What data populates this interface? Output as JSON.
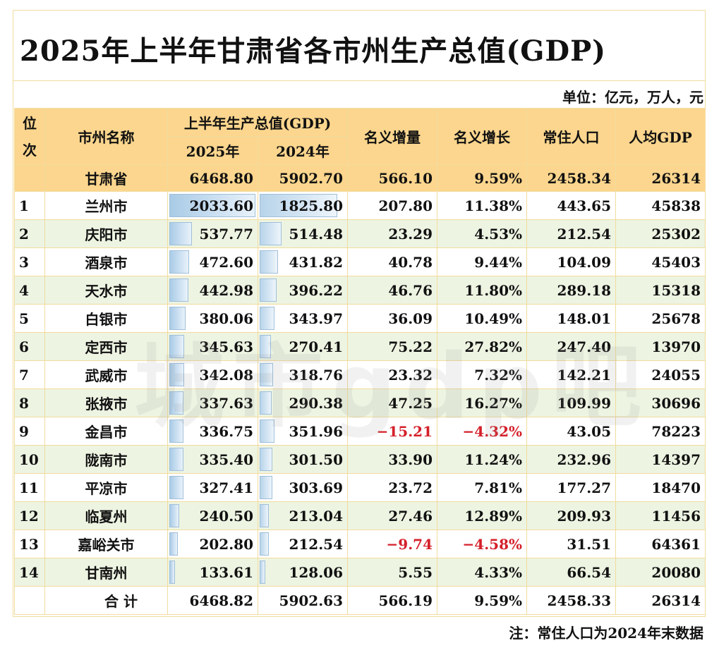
{
  "title": "2025年上半年甘肃省各市州生产总值(GDP)",
  "unit": "单位：亿元，万人，元",
  "note": "注：常住人口为2024年末数据",
  "watermark": "城市gdp吧",
  "headers": {
    "rank": "位次",
    "name": "市州名称",
    "gdp_group": "上半年生产总值(GDP)",
    "y2025": "2025年",
    "y2024": "2024年",
    "increase": "名义增量",
    "growth": "名义增长",
    "population": "常住人口",
    "per_capita": "人均GDP"
  },
  "province": {
    "name": "甘肃省",
    "gdp2025": "6468.80",
    "gdp2024": "5902.70",
    "increase": "566.10",
    "growth": "9.59%",
    "population": "2458.34",
    "per_capita": "26314"
  },
  "rows": [
    {
      "rank": "1",
      "name": "兰州市",
      "gdp2025": "2033.60",
      "gdp2024": "1825.80",
      "increase": "207.80",
      "growth": "11.38%",
      "population": "443.65",
      "per_capita": "45838",
      "v25": 2033.6,
      "v24": 1825.8
    },
    {
      "rank": "2",
      "name": "庆阳市",
      "gdp2025": "537.77",
      "gdp2024": "514.48",
      "increase": "23.29",
      "growth": "4.53%",
      "population": "212.54",
      "per_capita": "25302",
      "v25": 537.77,
      "v24": 514.48
    },
    {
      "rank": "3",
      "name": "酒泉市",
      "gdp2025": "472.60",
      "gdp2024": "431.82",
      "increase": "40.78",
      "growth": "9.44%",
      "population": "104.09",
      "per_capita": "45403",
      "v25": 472.6,
      "v24": 431.82
    },
    {
      "rank": "4",
      "name": "天水市",
      "gdp2025": "442.98",
      "gdp2024": "396.22",
      "increase": "46.76",
      "growth": "11.80%",
      "population": "289.18",
      "per_capita": "15318",
      "v25": 442.98,
      "v24": 396.22
    },
    {
      "rank": "5",
      "name": "白银市",
      "gdp2025": "380.06",
      "gdp2024": "343.97",
      "increase": "36.09",
      "growth": "10.49%",
      "population": "148.01",
      "per_capita": "25678",
      "v25": 380.06,
      "v24": 343.97
    },
    {
      "rank": "6",
      "name": "定西市",
      "gdp2025": "345.63",
      "gdp2024": "270.41",
      "increase": "75.22",
      "growth": "27.82%",
      "population": "247.40",
      "per_capita": "13970",
      "v25": 345.63,
      "v24": 270.41
    },
    {
      "rank": "7",
      "name": "武威市",
      "gdp2025": "342.08",
      "gdp2024": "318.76",
      "increase": "23.32",
      "growth": "7.32%",
      "population": "142.21",
      "per_capita": "24055",
      "v25": 342.08,
      "v24": 318.76
    },
    {
      "rank": "8",
      "name": "张掖市",
      "gdp2025": "337.63",
      "gdp2024": "290.38",
      "increase": "47.25",
      "growth": "16.27%",
      "population": "109.99",
      "per_capita": "30696",
      "v25": 337.63,
      "v24": 290.38
    },
    {
      "rank": "9",
      "name": "金昌市",
      "gdp2025": "336.75",
      "gdp2024": "351.96",
      "increase": "−15.21",
      "growth": "−4.32%",
      "population": "43.05",
      "per_capita": "78223",
      "v25": 336.75,
      "v24": 351.96,
      "neg": true
    },
    {
      "rank": "10",
      "name": "陇南市",
      "gdp2025": "335.40",
      "gdp2024": "301.50",
      "increase": "33.90",
      "growth": "11.24%",
      "population": "232.96",
      "per_capita": "14397",
      "v25": 335.4,
      "v24": 301.5
    },
    {
      "rank": "11",
      "name": "平凉市",
      "gdp2025": "327.41",
      "gdp2024": "303.69",
      "increase": "23.72",
      "growth": "7.81%",
      "population": "177.27",
      "per_capita": "18470",
      "v25": 327.41,
      "v24": 303.69
    },
    {
      "rank": "12",
      "name": "临夏州",
      "gdp2025": "240.50",
      "gdp2024": "213.04",
      "increase": "27.46",
      "growth": "12.89%",
      "population": "209.93",
      "per_capita": "11456",
      "v25": 240.5,
      "v24": 213.04
    },
    {
      "rank": "13",
      "name": "嘉峪关市",
      "gdp2025": "202.80",
      "gdp2024": "212.54",
      "increase": "−9.74",
      "growth": "−4.58%",
      "population": "31.51",
      "per_capita": "64361",
      "v25": 202.8,
      "v24": 212.54,
      "neg": true
    },
    {
      "rank": "14",
      "name": "甘南州",
      "gdp2025": "133.61",
      "gdp2024": "128.06",
      "increase": "5.55",
      "growth": "4.33%",
      "population": "66.54",
      "per_capita": "20080",
      "v25": 133.61,
      "v24": 128.06
    }
  ],
  "total": {
    "label": "合 计",
    "gdp2025": "6468.82",
    "gdp2024": "5902.63",
    "increase": "566.19",
    "growth": "9.59%",
    "population": "2458.33",
    "per_capita": "26314"
  },
  "colors": {
    "header_bg": "#fcd68e",
    "stripe_bg": "#edf4e2",
    "negative": "#d4202a",
    "bar": "#a9cbe6"
  }
}
